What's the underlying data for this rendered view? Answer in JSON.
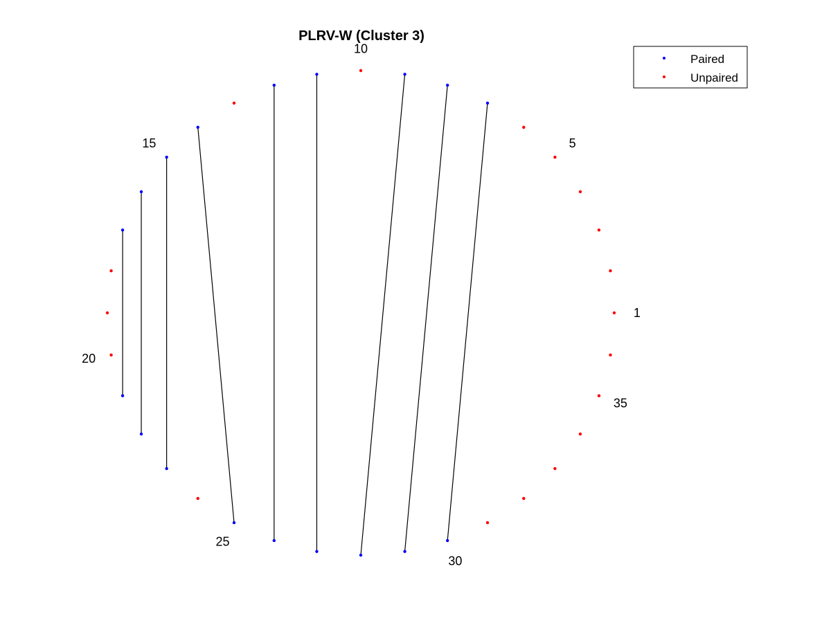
{
  "chart_data": {
    "type": "arc-diagram",
    "title": "PLRV-W (Cluster 3)",
    "node_count": 36,
    "start_angle_deg": 0,
    "direction": "counterclockwise",
    "index_labels": [
      {
        "node": 1,
        "text": "1"
      },
      {
        "node": 5,
        "text": "5"
      },
      {
        "node": 10,
        "text": "10"
      },
      {
        "node": 15,
        "text": "15"
      },
      {
        "node": 20,
        "text": "20"
      },
      {
        "node": 25,
        "text": "25"
      },
      {
        "node": 30,
        "text": "30"
      },
      {
        "node": 35,
        "text": "35"
      }
    ],
    "pairs": [
      [
        7,
        30
      ],
      [
        8,
        29
      ],
      [
        9,
        28
      ],
      [
        11,
        27
      ],
      [
        12,
        26
      ],
      [
        14,
        25
      ],
      [
        15,
        23
      ],
      [
        16,
        22
      ],
      [
        17,
        21
      ]
    ],
    "legend": {
      "position": "top-right",
      "entries": [
        {
          "label": "Paired",
          "color": "#0000ff"
        },
        {
          "label": "Unpaired",
          "color": "#ff0000"
        }
      ]
    },
    "colors": {
      "paired": "#0000ff",
      "unpaired": "#ff0000",
      "link": "#000000"
    }
  }
}
